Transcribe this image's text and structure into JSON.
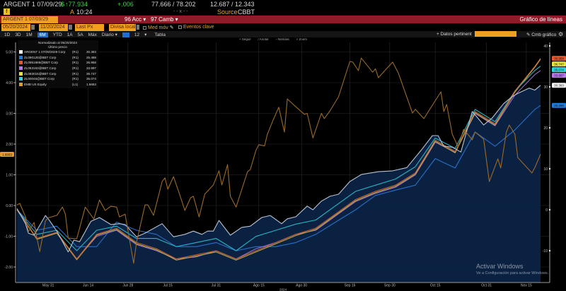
{
  "ticker_bar": {
    "security": "ARGENT 1 07/09/29",
    "price_prefix": "$",
    "price": "↑77.934",
    "change": "+.006",
    "bid_ask": "77.666 / 78.202",
    "yield": "12.687 / 12.343",
    "alert_icon": "exclamation-icon",
    "time_prefix": "A",
    "time": "10:24",
    "size": "- - x - -",
    "source_label": "Source",
    "source": "CBBT"
  },
  "command_bar": {
    "security_input": "ARGENT 1 07/09/29",
    "actions_label": "96 Acc ▾",
    "settings_label": "97 Camb ▾",
    "function_title": "Gráfico de líneas",
    "bar_color": "#8e1b28"
  },
  "options_bar": {
    "start_date": "05/20/2024",
    "end_date": "11/20/2024",
    "field": "Last Px",
    "currency": "Divisa local",
    "moving_avg": "Med móv",
    "key_events": "Eventos clave",
    "related_data": "+ Datos pertinent",
    "related_input": "",
    "edit_chart": "✎ Cmb gráfico"
  },
  "period_bar": {
    "periods": [
      "1D",
      "3D",
      "1M",
      "6M",
      "YTD",
      "1A",
      "5A",
      "Máx"
    ],
    "active_period": "6M",
    "frequency": "Diario ▾",
    "bars": "12",
    "bars_arrow": "▾",
    "table": "Tabla"
  },
  "chart_toolbar": [
    "+ Seguir",
    "⁄ Anotar",
    "▫ Noticias",
    "⌕ Zoom"
  ],
  "watermark": {
    "title": "Activar Windows",
    "subtitle": "Ve a Configuración para activar Windows."
  },
  "chart_data": {
    "type": "line",
    "legend_title": "Normalizado al 05/20/2024",
    "legend_subtitle": "Último precio",
    "legend_position": "top-left",
    "xlabel": "2024",
    "x_unit": "days since 05/20/2024",
    "x_ticks": [
      {
        "day": 11,
        "label": "May 31"
      },
      {
        "day": 25,
        "label": "Jun 14"
      },
      {
        "day": 39,
        "label": "Jun 28"
      },
      {
        "day": 53,
        "label": "Jul 15"
      },
      {
        "day": 70,
        "label": "Jul 31"
      },
      {
        "day": 85,
        "label": "Ago 15"
      },
      {
        "day": 100,
        "label": "Ago 30"
      },
      {
        "day": 117,
        "label": "Sep 16"
      },
      {
        "day": 131,
        "label": "Sep 30"
      },
      {
        "day": 147,
        "label": "Oct 15"
      },
      {
        "day": 165,
        "label": "Oct 31"
      },
      {
        "day": 179,
        "label": "Nov 15"
      }
    ],
    "xlim": [
      0,
      184
    ],
    "left_axis": {
      "ylim": [
        -2.2,
        5.3
      ],
      "ticks": [
        "5.00",
        "4.00",
        "3.00",
        "2.00",
        "1.00",
        "0.00",
        "-1.00",
        "-2.00"
      ],
      "tick_values": [
        5,
        4,
        3,
        2,
        1,
        0,
        -1,
        -2
      ]
    },
    "right_axis": {
      "ylim": [
        -14,
        41
      ],
      "ticks": [
        "40",
        "30",
        "20",
        "10",
        "0",
        "-10"
      ],
      "tick_values": [
        40,
        30,
        20,
        10,
        0,
        -10
      ]
    },
    "grid_days": [
      0,
      7,
      14,
      21,
      28,
      35,
      42,
      49,
      56,
      63,
      70,
      77,
      84,
      91,
      98,
      105,
      112,
      119,
      126,
      133,
      140,
      147,
      154,
      161,
      168,
      175,
      182,
      184
    ],
    "series": [
      {
        "name": "ARGENT 1 07/09/2029 Corp",
        "axis": "(R1)",
        "last": "30.383",
        "color": "#f2f2f2",
        "line": "#b9c4d4",
        "fill": true,
        "points": [
          [
            0,
            0.3
          ],
          [
            3,
            -3.4
          ],
          [
            4,
            -5.7
          ],
          [
            6,
            -6.2
          ],
          [
            10,
            -1.4
          ],
          [
            11,
            -2.2
          ],
          [
            14,
            -5.2
          ],
          [
            18,
            -10.3
          ],
          [
            20,
            -7.4
          ],
          [
            22,
            -7.8
          ],
          [
            26,
            -2.8
          ],
          [
            29,
            -1.9
          ],
          [
            33,
            -3.6
          ],
          [
            36,
            -3.4
          ],
          [
            38,
            -3.6
          ],
          [
            42,
            -6.6
          ],
          [
            45,
            -5.7
          ],
          [
            51,
            -3.4
          ],
          [
            55,
            -6.6
          ],
          [
            59,
            -6.0
          ],
          [
            62,
            -5.2
          ],
          [
            65,
            -6.0
          ],
          [
            67,
            -5.2
          ],
          [
            69,
            -5.2
          ],
          [
            71,
            -2.6
          ],
          [
            75,
            -6.2
          ],
          [
            79,
            -4.3
          ],
          [
            82,
            -4.0
          ],
          [
            86,
            -1.9
          ],
          [
            89,
            -1.4
          ],
          [
            93,
            -3.4
          ],
          [
            95,
            -2.2
          ],
          [
            98,
            -1.7
          ],
          [
            102,
            0.9
          ],
          [
            104,
            0
          ],
          [
            107,
            2.1
          ],
          [
            110,
            3.3
          ],
          [
            113,
            3.8
          ],
          [
            117,
            6.9
          ],
          [
            121,
            8.6
          ],
          [
            127,
            9.3
          ],
          [
            132,
            9.5
          ],
          [
            137,
            10.3
          ],
          [
            142,
            14.5
          ],
          [
            146,
            18.1
          ],
          [
            148,
            18.1
          ],
          [
            150,
            15.5
          ],
          [
            153,
            15.3
          ],
          [
            156,
            14.1
          ],
          [
            160,
            24.0
          ],
          [
            164,
            20.7
          ],
          [
            167,
            22.4
          ],
          [
            171,
            25.9
          ],
          [
            174,
            27.6
          ],
          [
            176,
            28.4
          ],
          [
            180,
            29.7
          ],
          [
            182,
            29.2
          ],
          [
            184,
            30.383
          ]
        ]
      },
      {
        "name": "ZL090125@BBT Corp",
        "axis": "(R1)",
        "last": "25.468",
        "color": "#1e7be0",
        "line": "#2a6fc8",
        "values": [
          0,
          -5,
          -4,
          -9,
          -9,
          -3,
          -5,
          -6,
          -9,
          -9,
          -8,
          -10,
          -9,
          -9,
          -8,
          -6,
          -3,
          0,
          3.5,
          4.8,
          6,
          12.5,
          10.2,
          19,
          15.5,
          19.5,
          24.5,
          25.468
        ]
      },
      {
        "name": "ZL0951986@BBT Corp",
        "axis": "(R1)",
        "last": "36.958",
        "color": "#e8552a",
        "line": "#c8642e",
        "values": [
          0,
          -7,
          -5.5,
          -12,
          -6,
          -4.5,
          -8,
          -9.5,
          -12,
          -11,
          -10,
          -12,
          -10,
          -8,
          -6,
          -4.5,
          -1,
          2.5,
          4.5,
          6,
          9,
          17,
          14.2,
          24,
          21,
          29,
          35,
          36.958
        ]
      },
      {
        "name": "ZL083163@BBT Corp",
        "axis": "(R1)",
        "last": "33.997",
        "color": "#b77ae8",
        "line": "#9a6ccc",
        "values": [
          0,
          -7,
          -5.5,
          -12,
          -6.5,
          -5,
          -8.5,
          -10,
          -12,
          -11.5,
          -10,
          -12,
          -9.5,
          -8,
          -6,
          -5,
          -1.5,
          2,
          4,
          5.5,
          8.5,
          16.5,
          14,
          23.5,
          20.5,
          28,
          33,
          33.997
        ]
      },
      {
        "name": "ZL083015@BBT Corp",
        "axis": "(R1)",
        "last": "36.747",
        "color": "#e8e23a",
        "line": "#b8a84a",
        "values": [
          0,
          -7.2,
          -5.7,
          -12.2,
          -6.2,
          -4.8,
          -8.3,
          -9.8,
          -12.3,
          -11.3,
          -10.3,
          -12.3,
          -10.3,
          -8.3,
          -6.3,
          -4.8,
          -1.3,
          2.2,
          4.2,
          5.7,
          8.7,
          16.7,
          13.9,
          23.7,
          20.7,
          28.7,
          34.8,
          36.747
        ]
      },
      {
        "name": "ZL00045@BBT Corp",
        "axis": "(R1)",
        "last": "35.074",
        "color": "#2ad6e0",
        "line": "#2ab4c0",
        "values": [
          0,
          -6,
          -5,
          -10,
          -5,
          -4,
          -7,
          -7,
          -9,
          -8,
          -7,
          -10,
          -6.5,
          -5,
          -3.5,
          -2.5,
          1,
          4.5,
          6,
          7.5,
          10.5,
          17.5,
          15,
          24.5,
          21.5,
          29,
          34,
          35.074
        ]
      },
      {
        "name": "EMB US Equity",
        "axis": "(L1)",
        "last": "1.6663",
        "color": "#e89a2a",
        "line": "#9a6a2a",
        "left": true,
        "points": [
          [
            0,
            0.02
          ],
          [
            1,
            0.07
          ],
          [
            3,
            -0.37
          ],
          [
            4,
            -0.85
          ],
          [
            6,
            -0.55
          ],
          [
            7,
            -1.06
          ],
          [
            8,
            -1.5
          ],
          [
            10,
            -0.5
          ],
          [
            11,
            -0.4
          ],
          [
            14,
            -0.32
          ],
          [
            16,
            -0.05
          ],
          [
            17,
            -0.28
          ],
          [
            18,
            -1.06
          ],
          [
            21,
            -1.08
          ],
          [
            24,
            -0.05
          ],
          [
            27,
            -0.44
          ],
          [
            29,
            0.18
          ],
          [
            31,
            -0.16
          ],
          [
            33,
            -0.02
          ],
          [
            35,
            -0.05
          ],
          [
            36,
            -0.37
          ],
          [
            38,
            -0.28
          ],
          [
            41,
            -1.88
          ],
          [
            42,
            -1.2
          ],
          [
            45,
            0.02
          ],
          [
            46,
            0.02
          ],
          [
            48,
            -0.32
          ],
          [
            51,
            0.78
          ],
          [
            52,
            0.9
          ],
          [
            53,
            0.53
          ],
          [
            55,
            0.94
          ],
          [
            57,
            0.41
          ],
          [
            59,
            -0.16
          ],
          [
            61,
            0.25
          ],
          [
            62,
            0.3
          ],
          [
            64,
            -0.37
          ],
          [
            66,
            0.37
          ],
          [
            69,
            0.67
          ],
          [
            71,
            1.13
          ],
          [
            72,
            0.67
          ],
          [
            74,
            1.33
          ],
          [
            75,
            0.3
          ],
          [
            77,
            -0.05
          ],
          [
            81,
            1.1
          ],
          [
            82,
            1.17
          ],
          [
            84,
            1.8
          ],
          [
            85,
            1.98
          ],
          [
            87,
            1.94
          ],
          [
            88,
            2.32
          ],
          [
            90,
            2.78
          ],
          [
            92,
            3.2
          ],
          [
            94,
            2.39
          ],
          [
            95,
            3.47
          ],
          [
            99,
            3.13
          ],
          [
            101,
            2.97
          ],
          [
            102,
            3.0
          ],
          [
            104,
            2.2
          ],
          [
            107,
            3.0
          ],
          [
            108,
            2.83
          ],
          [
            110,
            3.08
          ],
          [
            113,
            3.54
          ],
          [
            117,
            4.69
          ],
          [
            118,
            4.67
          ],
          [
            120,
            4.39
          ],
          [
            121,
            4.8
          ],
          [
            125,
            4.34
          ],
          [
            126,
            4.45
          ],
          [
            127,
            4.16
          ],
          [
            132,
            4.67
          ],
          [
            134,
            4.32
          ],
          [
            139,
            3.01
          ],
          [
            140,
            3.13
          ],
          [
            143,
            2.83
          ],
          [
            149,
            3.7
          ],
          [
            150,
            3.06
          ],
          [
            151,
            3.29
          ],
          [
            153,
            2.32
          ],
          [
            155,
            1.91
          ],
          [
            157,
            2.48
          ],
          [
            160,
            2.14
          ],
          [
            161,
            2.39
          ],
          [
            164,
            2.16
          ],
          [
            166,
            0.78
          ],
          [
            169,
            1.52
          ],
          [
            170,
            1.22
          ],
          [
            172,
            2.39
          ],
          [
            173,
            2.62
          ],
          [
            175,
            2.32
          ],
          [
            176,
            1.56
          ],
          [
            181,
            1.06
          ],
          [
            182,
            1.24
          ],
          [
            184,
            1.6663
          ]
        ]
      }
    ]
  }
}
